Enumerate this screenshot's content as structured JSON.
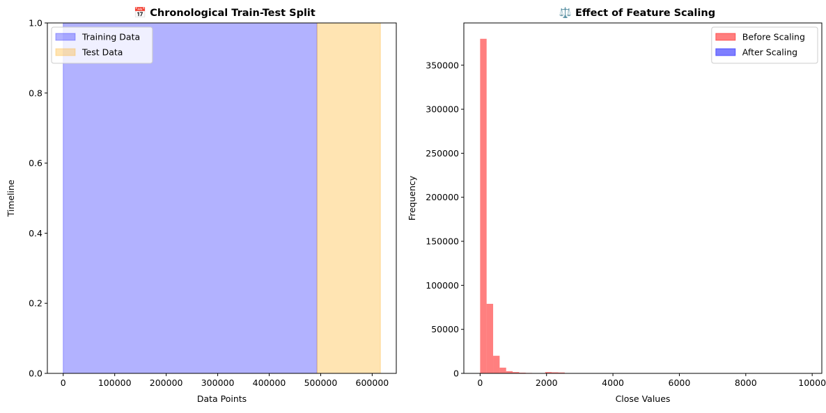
{
  "chart_data": [
    {
      "type": "area",
      "title": "📅 Chronological Train-Test Split",
      "xlabel": "Data Points",
      "ylabel": "Timeline",
      "xlim": [
        -30800,
        646800
      ],
      "ylim": [
        0,
        1
      ],
      "xticks": [
        0,
        100000,
        200000,
        300000,
        400000,
        500000,
        600000
      ],
      "xtick_labels": [
        "0",
        "100000",
        "200000",
        "300000",
        "400000",
        "500000",
        "600000"
      ],
      "yticks": [
        0.0,
        0.2,
        0.4,
        0.6,
        0.8,
        1.0
      ],
      "ytick_labels": [
        "0.0",
        "0.2",
        "0.4",
        "0.6",
        "0.8",
        "1.0"
      ],
      "grid": false,
      "legend_position": "top-left",
      "series": [
        {
          "name": "Training Data",
          "x": [
            0,
            492800
          ],
          "y": [
            1,
            1
          ],
          "color": "#0000ff",
          "alpha": 0.3
        },
        {
          "name": "Test Data",
          "x": [
            492800,
            616000
          ],
          "y": [
            1,
            1
          ],
          "color": "#ffa500",
          "alpha": 0.3
        }
      ]
    },
    {
      "type": "bar",
      "title": "⚖️ Effect of Feature Scaling",
      "xlabel": "Close Values",
      "ylabel": "Frequency",
      "xlim": [
        -490,
        10290
      ],
      "ylim": [
        0,
        398000
      ],
      "xticks": [
        0,
        2000,
        4000,
        6000,
        8000,
        10000
      ],
      "xtick_labels": [
        "0",
        "2000",
        "4000",
        "6000",
        "8000",
        "10000"
      ],
      "yticks": [
        0,
        50000,
        100000,
        150000,
        200000,
        250000,
        300000,
        350000
      ],
      "ytick_labels": [
        "0",
        "50000",
        "100000",
        "150000",
        "200000",
        "250000",
        "300000",
        "350000"
      ],
      "grid": false,
      "legend_position": "top-right",
      "bin_width": 196,
      "series": [
        {
          "name": "Before Scaling",
          "color": "#ff0000",
          "alpha": 0.5,
          "bins_start": 0,
          "values": [
            380000,
            79000,
            20000,
            6500,
            2500,
            1500,
            800,
            500,
            300,
            200,
            1500,
            1200,
            1000,
            200,
            100,
            50,
            30,
            20,
            10,
            10,
            5,
            5,
            5,
            5,
            5,
            5,
            5,
            5,
            5,
            5,
            5,
            5,
            5,
            5,
            5,
            5,
            5,
            5,
            5,
            5,
            5,
            5,
            5,
            5,
            5,
            5,
            5,
            5,
            5,
            5
          ]
        },
        {
          "name": "After Scaling",
          "color": "#0000ff",
          "alpha": 0.5,
          "bins_start": 0,
          "values": [
            0
          ]
        }
      ]
    }
  ]
}
